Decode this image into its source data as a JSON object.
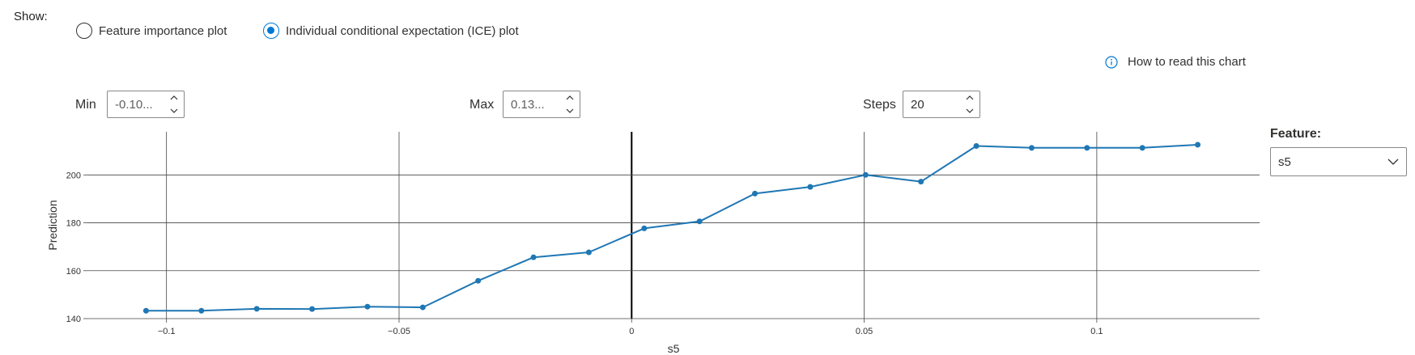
{
  "show_label": "Show:",
  "plot_type": {
    "options": [
      {
        "label": "Feature importance plot",
        "selected": false
      },
      {
        "label": "Individual conditional expectation (ICE) plot",
        "selected": true
      }
    ]
  },
  "help_link": {
    "label": "How to read this chart",
    "icon": "info-icon"
  },
  "controls": {
    "min": {
      "label": "Min",
      "value": "-0.10..."
    },
    "max": {
      "label": "Max",
      "value": "0.13..."
    },
    "steps": {
      "label": "Steps",
      "value": "20"
    }
  },
  "feature": {
    "label": "Feature:",
    "selected": "s5"
  },
  "colors": {
    "series": "#1f77b4",
    "accent": "#0078d4",
    "grid": "#444444",
    "zero_line": "#000000"
  },
  "chart_data": {
    "type": "line",
    "xlabel": "s5",
    "ylabel": "Prediction",
    "xlim": [
      -0.117,
      0.135
    ],
    "ylim": [
      140,
      218
    ],
    "x_ticks": [
      -0.1,
      -0.05,
      0,
      0.05,
      0.1
    ],
    "x_tick_labels": [
      "−0.1",
      "−0.05",
      "0",
      "0.05",
      "0.1"
    ],
    "y_ticks": [
      140,
      160,
      180,
      200
    ],
    "y_tick_labels": [
      "140",
      "160",
      "180",
      "200"
    ],
    "grid": true,
    "series": [
      {
        "x": [
          -0.1044,
          -0.0925,
          -0.0806,
          -0.0687,
          -0.0568,
          -0.0449,
          -0.033,
          -0.0211,
          -0.0092,
          0.0027,
          0.0146,
          0.0265,
          0.0384,
          0.0503,
          0.0622,
          0.0741,
          0.086,
          0.0979,
          0.1098,
          0.1217
        ],
        "y": [
          143.3,
          143.3,
          144.1,
          144.0,
          145.0,
          144.7,
          155.8,
          165.6,
          167.7,
          177.7,
          180.6,
          192.2,
          195.0,
          200.0,
          197.2,
          212.1,
          211.3,
          211.3,
          211.3,
          212.6
        ]
      }
    ]
  }
}
